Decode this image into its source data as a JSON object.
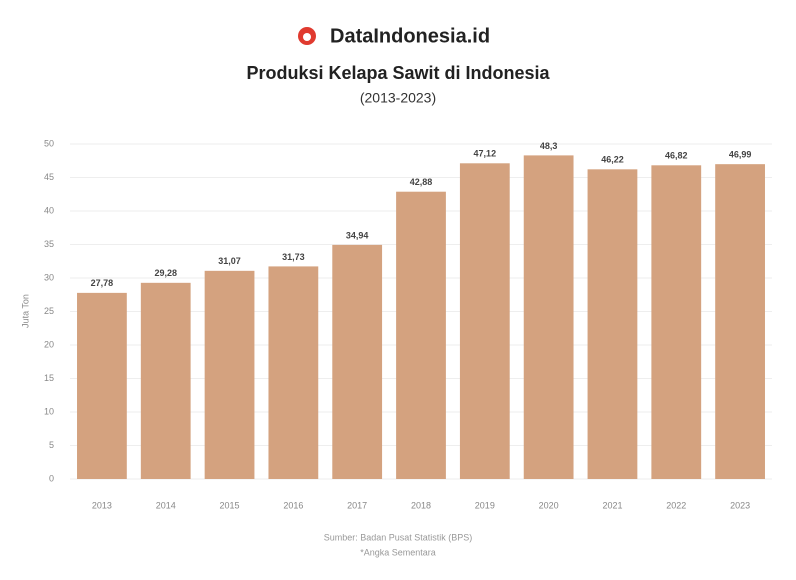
{
  "brand": "DataIndonesia.id",
  "chart_data": {
    "type": "bar",
    "title": "Produksi Kelapa Sawit di Indonesia",
    "subtitle": "(2013-2023)",
    "y_label": "Juta Ton",
    "categories": [
      "2013",
      "2014",
      "2015",
      "2016",
      "2017",
      "2018",
      "2019",
      "2020",
      "2021",
      "2022",
      "2023"
    ],
    "values": [
      27.78,
      29.28,
      31.07,
      31.73,
      34.94,
      42.88,
      47.12,
      48.3,
      46.22,
      46.82,
      46.99
    ],
    "value_labels": [
      "27,78",
      "29,28",
      "31,07",
      "31,73",
      "34,94",
      "42,88",
      "47,12",
      "48,3",
      "46,22",
      "46,82",
      "46,99"
    ],
    "color": "#d4a27f",
    "ylim": [
      0,
      50
    ],
    "yticks": [
      0,
      5,
      10,
      15,
      20,
      25,
      30,
      35,
      40,
      45,
      50
    ],
    "grid": true,
    "source": "Sumber: Badan Pusat Statistik (BPS)",
    "note": "*Angka Sementara"
  }
}
